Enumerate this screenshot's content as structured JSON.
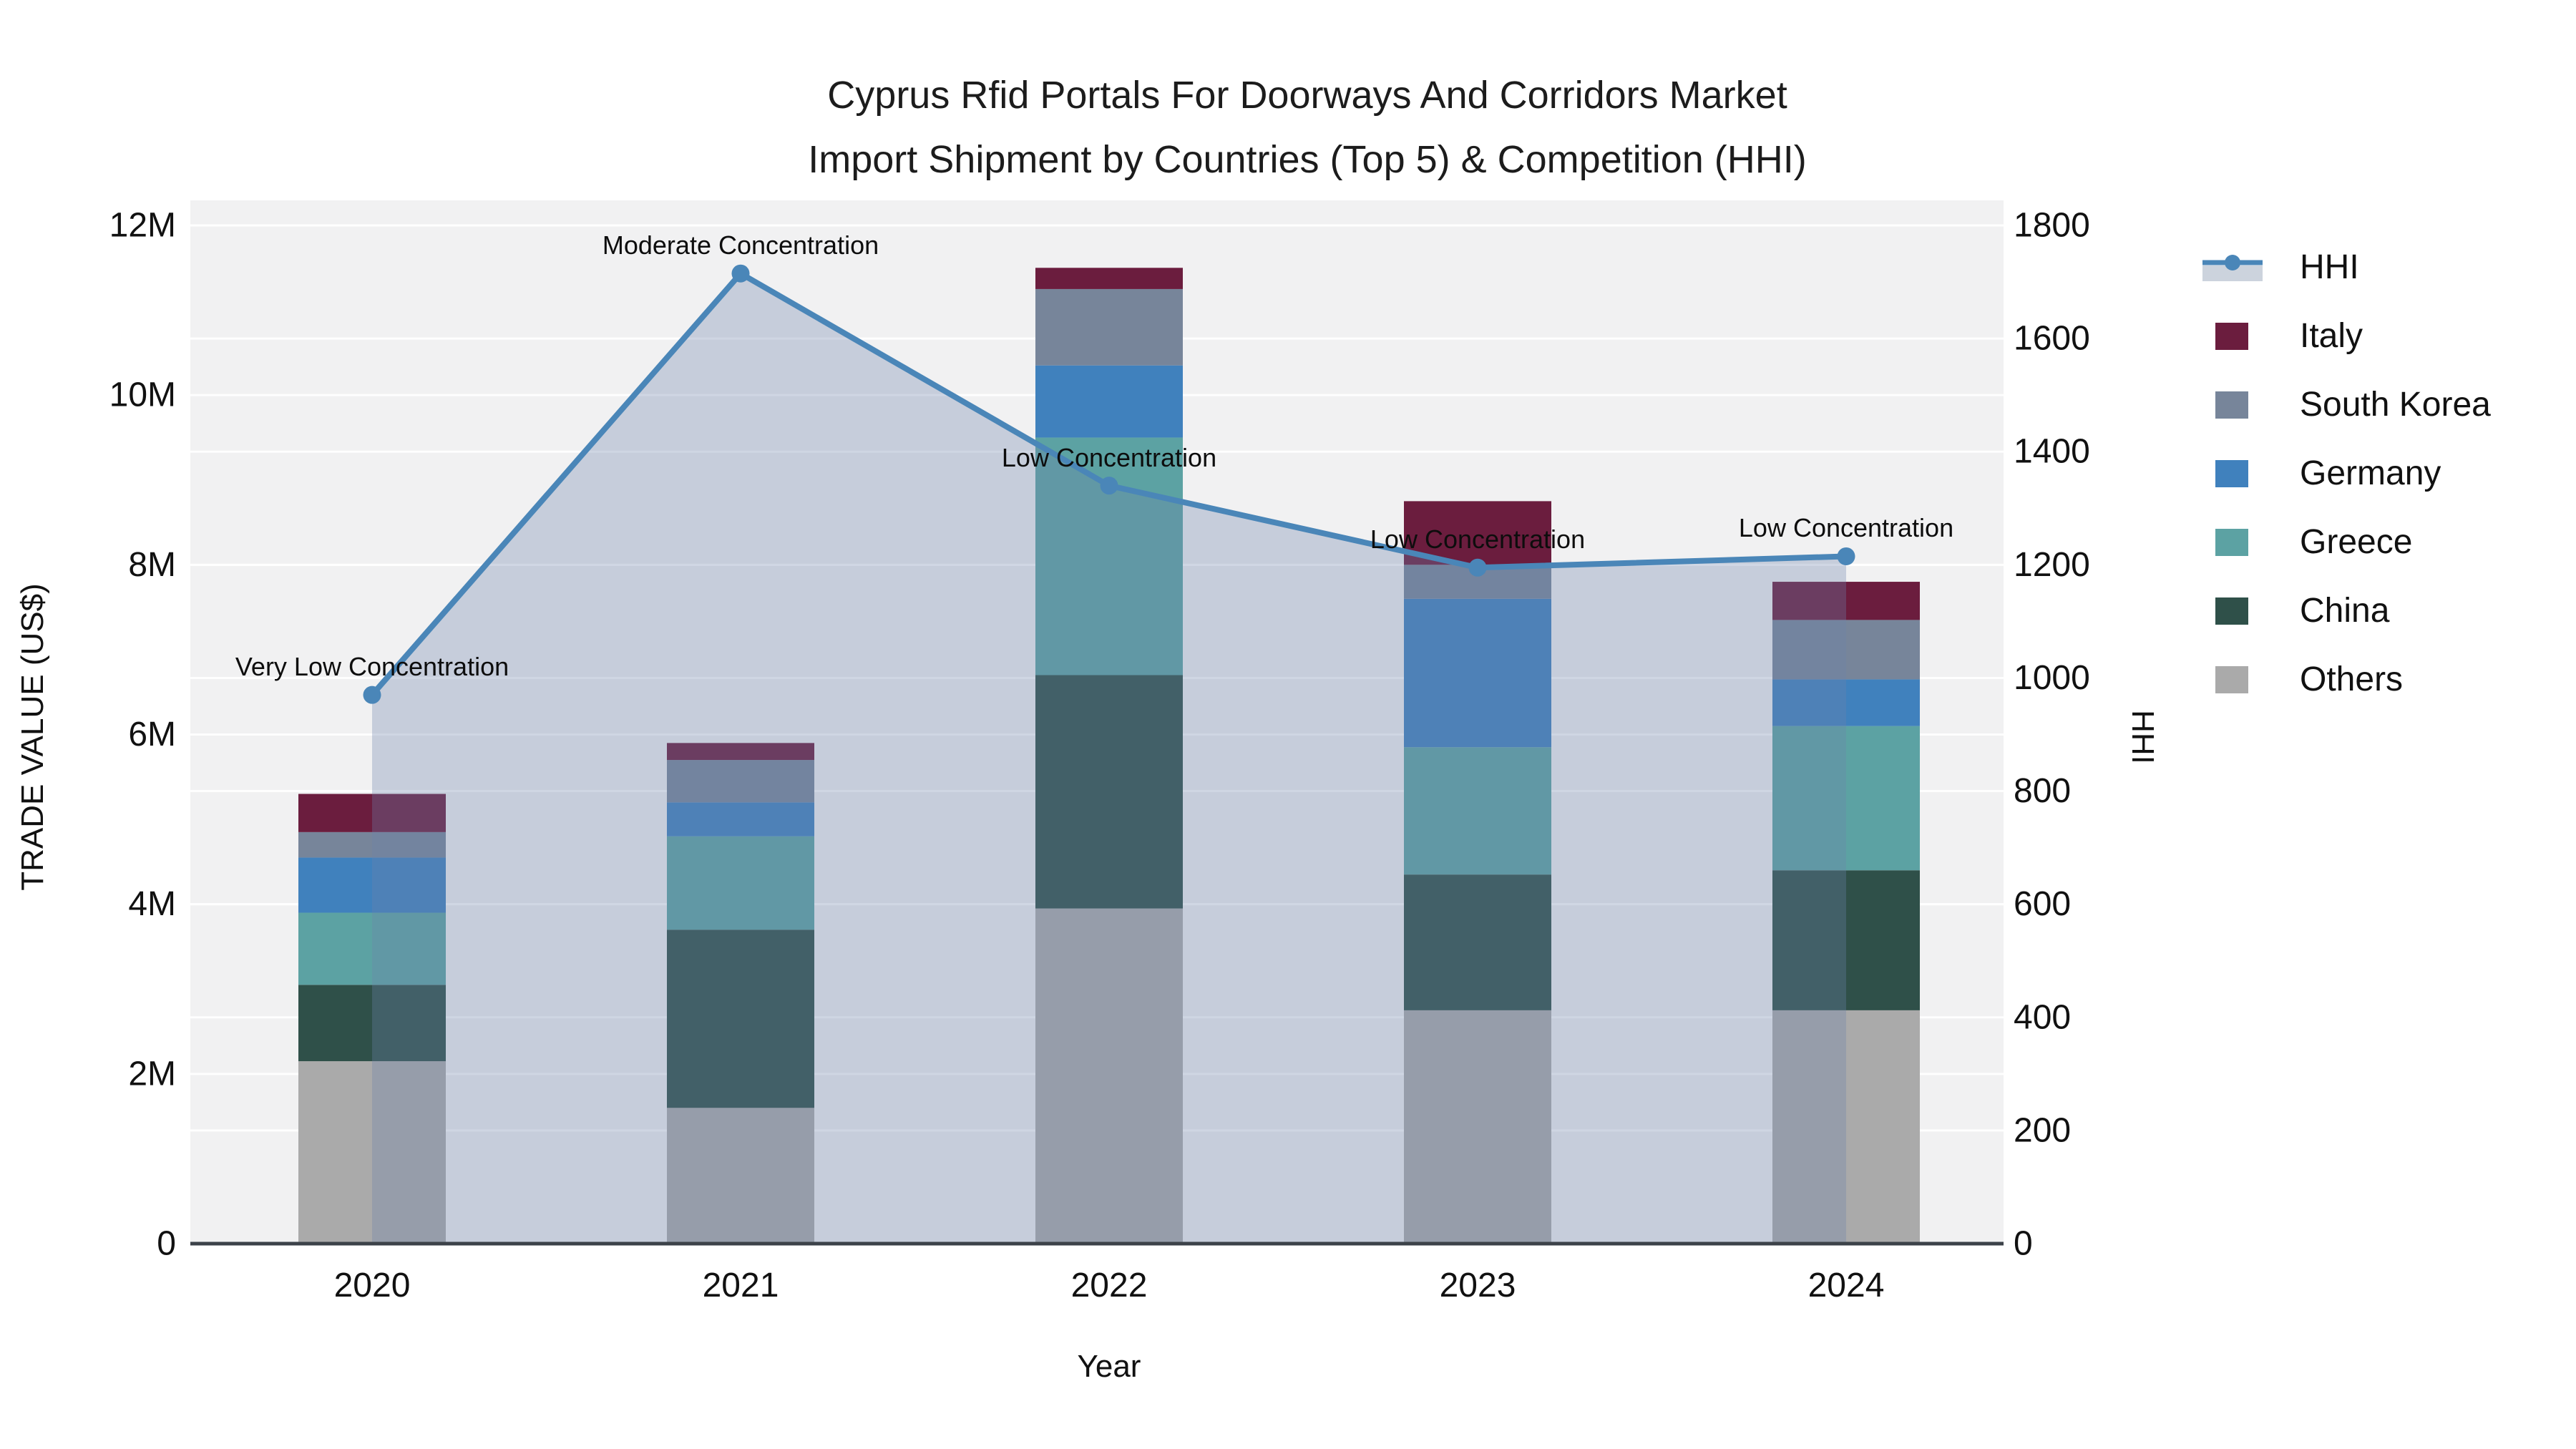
{
  "title": {
    "line1": "Cyprus Rfid Portals For Doorways And Corridors Market",
    "line2": "Import Shipment by Countries (Top 5) & Competition (HHI)"
  },
  "axes": {
    "x": {
      "title": "Year",
      "tick_labels": [
        "2020",
        "2021",
        "2022",
        "2023",
        "2024"
      ]
    },
    "y_left": {
      "title": "TRADE VALUE (US$)",
      "tick_labels": [
        "0",
        "2M",
        "4M",
        "6M",
        "8M",
        "10M",
        "12M"
      ],
      "range": [
        0,
        12000000
      ]
    },
    "y_right": {
      "title": "HHI",
      "tick_labels": [
        "0",
        "200",
        "400",
        "600",
        "800",
        "1000",
        "1200",
        "1400",
        "1600",
        "1800"
      ],
      "range": [
        0,
        1800
      ]
    }
  },
  "legend": {
    "items": [
      {
        "label": "HHI",
        "type": "line",
        "color": "#4a86b8"
      },
      {
        "label": "Italy",
        "type": "swatch",
        "color": "#6b1d3e"
      },
      {
        "label": "South Korea",
        "type": "swatch",
        "color": "#77859a"
      },
      {
        "label": "Germany",
        "type": "swatch",
        "color": "#4081bd"
      },
      {
        "label": "Greece",
        "type": "swatch",
        "color": "#5ca2a3"
      },
      {
        "label": "China",
        "type": "swatch",
        "color": "#2f5049"
      },
      {
        "label": "Others",
        "type": "swatch",
        "color": "#aaaaaa"
      }
    ]
  },
  "annotations": [
    {
      "text": "Very Low Concentration",
      "year": "2020"
    },
    {
      "text": "Moderate Concentration",
      "year": "2021"
    },
    {
      "text": "Low Concentration",
      "year": "2022"
    },
    {
      "text": "Low Concentration",
      "year": "2023"
    },
    {
      "text": "Low Concentration",
      "year": "2024"
    }
  ],
  "chart_data": {
    "type": "bar",
    "subtype": "stacked_bars_with_line_overlay",
    "title": "Cyprus Rfid Portals For Doorways And Corridors Market Import Shipment by Countries (Top 5) & Competition (HHI)",
    "xlabel": "Year",
    "ylabel_left": "TRADE VALUE (US$)",
    "ylabel_right": "HHI",
    "ylim_left": [
      0,
      12000000
    ],
    "ylim_right": [
      0,
      1800
    ],
    "grid": true,
    "legend_position": "right",
    "categories": [
      "2020",
      "2021",
      "2022",
      "2023",
      "2024"
    ],
    "stack_order_bottom_to_top": [
      "Others",
      "China",
      "Greece",
      "Germany",
      "South Korea",
      "Italy"
    ],
    "series": [
      {
        "name": "Others",
        "color": "#aaaaaa",
        "values": [
          2150000,
          1600000,
          3950000,
          2750000,
          2750000
        ]
      },
      {
        "name": "China",
        "color": "#2f5049",
        "values": [
          900000,
          2100000,
          2750000,
          1600000,
          1650000
        ]
      },
      {
        "name": "Greece",
        "color": "#5ca2a3",
        "values": [
          850000,
          1100000,
          2800000,
          1500000,
          1700000
        ]
      },
      {
        "name": "Germany",
        "color": "#4081bd",
        "values": [
          650000,
          400000,
          850000,
          1750000,
          550000
        ]
      },
      {
        "name": "South Korea",
        "color": "#77859a",
        "values": [
          300000,
          500000,
          900000,
          400000,
          700000
        ]
      },
      {
        "name": "Italy",
        "color": "#6b1d3e",
        "values": [
          450000,
          200000,
          250000,
          750000,
          450000
        ]
      }
    ],
    "bar_totals": [
      5300000,
      5900000,
      11500000,
      8750000,
      7800000
    ],
    "line_series": {
      "name": "HHI",
      "axis": "right",
      "color": "#4a86b8",
      "fill_color": "rgba(110,130,170,0.32)",
      "values": [
        970,
        1715,
        1340,
        1195,
        1215
      ]
    }
  },
  "colors": {
    "plot_bg": "#f1f1f2",
    "grid": "rgba(255,255,255,0.9)",
    "axis_line": "#3c4249",
    "text": "#111111",
    "legend_band": "#ccd3dd"
  }
}
